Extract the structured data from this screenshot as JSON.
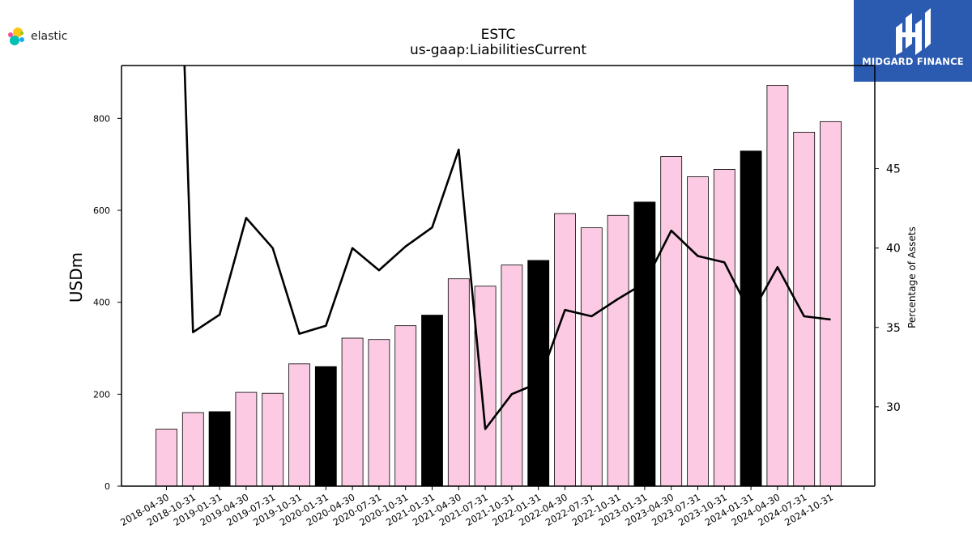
{
  "header": {
    "ticker": "ESTC",
    "metric": "us-gaap:LiabilitiesCurrent"
  },
  "logos": {
    "left_text": "elastic",
    "right_text": "MIDGARD FINANCE"
  },
  "colors": {
    "bar_default": "#fccbe3",
    "bar_highlight": "#000000",
    "line": "#000000",
    "brand_blue": "#2a5bb0"
  },
  "chart_data": {
    "type": "bar",
    "categories": [
      "2018-04-30",
      "2018-10-31",
      "2019-01-31",
      "2019-04-30",
      "2019-07-31",
      "2019-10-31",
      "2020-01-31",
      "2020-04-30",
      "2020-07-31",
      "2020-10-31",
      "2021-01-31",
      "2021-04-30",
      "2021-07-31",
      "2021-10-31",
      "2022-01-31",
      "2022-04-30",
      "2022-07-31",
      "2022-10-31",
      "2023-01-31",
      "2023-04-30",
      "2023-07-31",
      "2023-10-31",
      "2024-01-31",
      "2024-04-30",
      "2024-07-31",
      "2024-10-31"
    ],
    "values": [
      124,
      160,
      162,
      204,
      202,
      266,
      260,
      322,
      319,
      349,
      372,
      451,
      435,
      481,
      491,
      593,
      562,
      589,
      618,
      717,
      673,
      689,
      729,
      872,
      770,
      793
    ],
    "highlight": [
      false,
      false,
      true,
      false,
      false,
      false,
      true,
      false,
      false,
      false,
      true,
      false,
      false,
      false,
      true,
      false,
      false,
      false,
      true,
      false,
      false,
      false,
      true,
      false,
      false,
      false
    ],
    "ylabel": "USDm",
    "ylim": [
      0,
      915
    ],
    "yticks": [
      0,
      200,
      400,
      600,
      800
    ],
    "secondary": {
      "type": "line",
      "ylabel": "Percentage of Assets",
      "ylim": [
        25.0,
        51.5
      ],
      "yticks": [
        30,
        35,
        40,
        45
      ],
      "values": [
        60.0,
        34.7,
        35.8,
        41.9,
        40.0,
        34.6,
        35.1,
        40.0,
        38.6,
        40.1,
        41.3,
        46.2,
        28.6,
        30.8,
        31.5,
        36.1,
        35.7,
        36.8,
        37.8,
        41.1,
        39.5,
        39.1,
        35.8,
        38.8,
        35.7,
        35.5
      ]
    },
    "legend": "none",
    "grid": false
  }
}
